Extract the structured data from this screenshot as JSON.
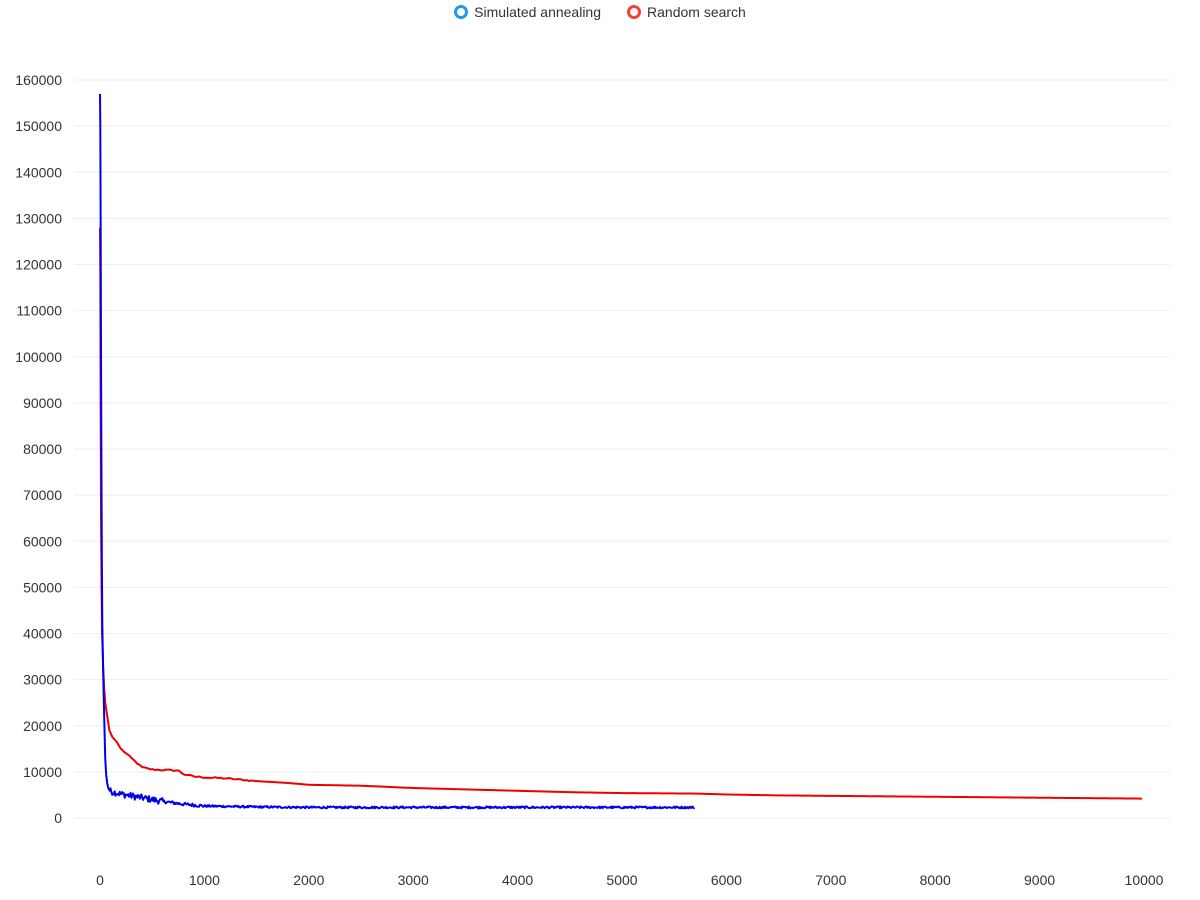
{
  "chart_data": {
    "type": "line",
    "xlim": [
      0,
      10000
    ],
    "ylim": [
      0,
      160000
    ],
    "x_ticks": [
      "0",
      "1000",
      "2000",
      "3000",
      "4000",
      "5000",
      "6000",
      "7000",
      "8000",
      "9000",
      "10000"
    ],
    "y_ticks": [
      "0",
      "10000",
      "20000",
      "30000",
      "40000",
      "50000",
      "60000",
      "70000",
      "80000",
      "90000",
      "100000",
      "110000",
      "120000",
      "130000",
      "140000",
      "150000",
      "160000"
    ],
    "grid": "horizontal",
    "legend_position": "top-center",
    "series": [
      {
        "name": "Simulated annealing",
        "line_color": "#0000ee",
        "legend_color": "#2196f3",
        "noisy": true,
        "points": [
          [
            0,
            157000
          ],
          [
            3,
            150000
          ],
          [
            6,
            130000
          ],
          [
            10,
            100000
          ],
          [
            14,
            75000
          ],
          [
            18,
            55000
          ],
          [
            22,
            42000
          ],
          [
            30,
            32000
          ],
          [
            40,
            22000
          ],
          [
            50,
            13000
          ],
          [
            60,
            9000
          ],
          [
            80,
            6500
          ],
          [
            100,
            5800
          ],
          [
            150,
            5500
          ],
          [
            200,
            5200
          ],
          [
            300,
            4800
          ],
          [
            400,
            4400
          ],
          [
            500,
            4000
          ],
          [
            600,
            3600
          ],
          [
            700,
            3300
          ],
          [
            800,
            3000
          ],
          [
            900,
            2800
          ],
          [
            1000,
            2600
          ],
          [
            1500,
            2400
          ],
          [
            2000,
            2300
          ],
          [
            3000,
            2300
          ],
          [
            4000,
            2300
          ],
          [
            5000,
            2300
          ],
          [
            5700,
            2300
          ]
        ]
      },
      {
        "name": "Random search",
        "line_color": "#ee0000",
        "legend_color": "#f44336",
        "noisy": false,
        "points": [
          [
            0,
            128000
          ],
          [
            3,
            118000
          ],
          [
            6,
            90000
          ],
          [
            10,
            65000
          ],
          [
            15,
            50000
          ],
          [
            20,
            40000
          ],
          [
            30,
            33000
          ],
          [
            40,
            28000
          ],
          [
            50,
            25000
          ],
          [
            70,
            22000
          ],
          [
            90,
            19000
          ],
          [
            120,
            17500
          ],
          [
            160,
            16500
          ],
          [
            200,
            15000
          ],
          [
            250,
            14000
          ],
          [
            300,
            13000
          ],
          [
            350,
            12000
          ],
          [
            400,
            11000
          ],
          [
            500,
            10500
          ],
          [
            750,
            10300
          ],
          [
            800,
            9500
          ],
          [
            900,
            9000
          ],
          [
            1000,
            8800
          ],
          [
            1200,
            8600
          ],
          [
            1500,
            8000
          ],
          [
            1800,
            7600
          ],
          [
            2000,
            7200
          ],
          [
            2500,
            7000
          ],
          [
            3000,
            6500
          ],
          [
            3500,
            6200
          ],
          [
            4000,
            5900
          ],
          [
            4500,
            5600
          ],
          [
            5000,
            5400
          ],
          [
            5700,
            5300
          ],
          [
            6000,
            5100
          ],
          [
            6500,
            4900
          ],
          [
            7000,
            4800
          ],
          [
            7500,
            4700
          ],
          [
            8000,
            4600
          ],
          [
            8500,
            4500
          ],
          [
            9000,
            4400
          ],
          [
            9500,
            4300
          ],
          [
            10000,
            4200
          ]
        ]
      }
    ]
  }
}
